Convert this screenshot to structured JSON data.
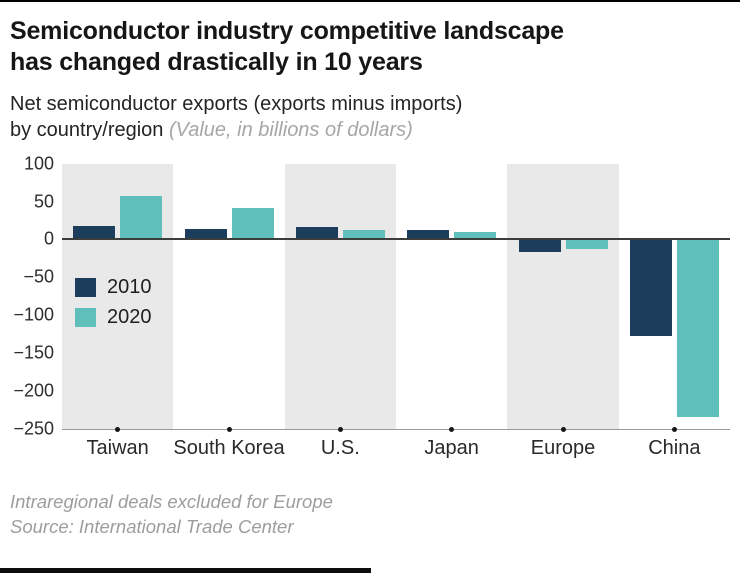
{
  "header": {
    "title_line1": "Semiconductor industry competitive landscape",
    "title_line2": "has changed drastically in 10 years",
    "subtitle_line1": "Net semiconductor exports (exports minus imports)",
    "subtitle_line2": "by country/region",
    "subtitle_note": "(Value, in billions of dollars)"
  },
  "chart_data": {
    "type": "bar",
    "categories": [
      "Taiwan",
      "South Korea",
      "U.S.",
      "Japan",
      "Europe",
      "China"
    ],
    "series": [
      {
        "name": "2010",
        "color": "#1d3d5d",
        "values": [
          18,
          14,
          16,
          13,
          -16,
          -128
        ]
      },
      {
        "name": "2020",
        "color": "#5fbfba",
        "values": [
          58,
          42,
          12,
          10,
          -12,
          -235
        ]
      }
    ],
    "ylim": [
      -250,
      100
    ],
    "yticks": [
      {
        "v": 100,
        "label": "100"
      },
      {
        "v": 50,
        "label": "50"
      },
      {
        "v": 0,
        "label": "0"
      },
      {
        "v": -50,
        "label": "−50"
      },
      {
        "v": -100,
        "label": "−100"
      },
      {
        "v": -150,
        "label": "−150"
      },
      {
        "v": -200,
        "label": "−200"
      },
      {
        "v": -250,
        "label": "−250"
      }
    ],
    "title": "Net semiconductor exports (exports minus imports) by country/region",
    "ylabel": "Value, in billions of dollars",
    "legend_position": "inside-left",
    "grid": false,
    "background_bands": "alternating gray columns (Taiwan, U.S., Europe)"
  },
  "footnotes": {
    "line1": "Intraregional deals excluded for Europe",
    "line2": "Source: International Trade Center"
  }
}
